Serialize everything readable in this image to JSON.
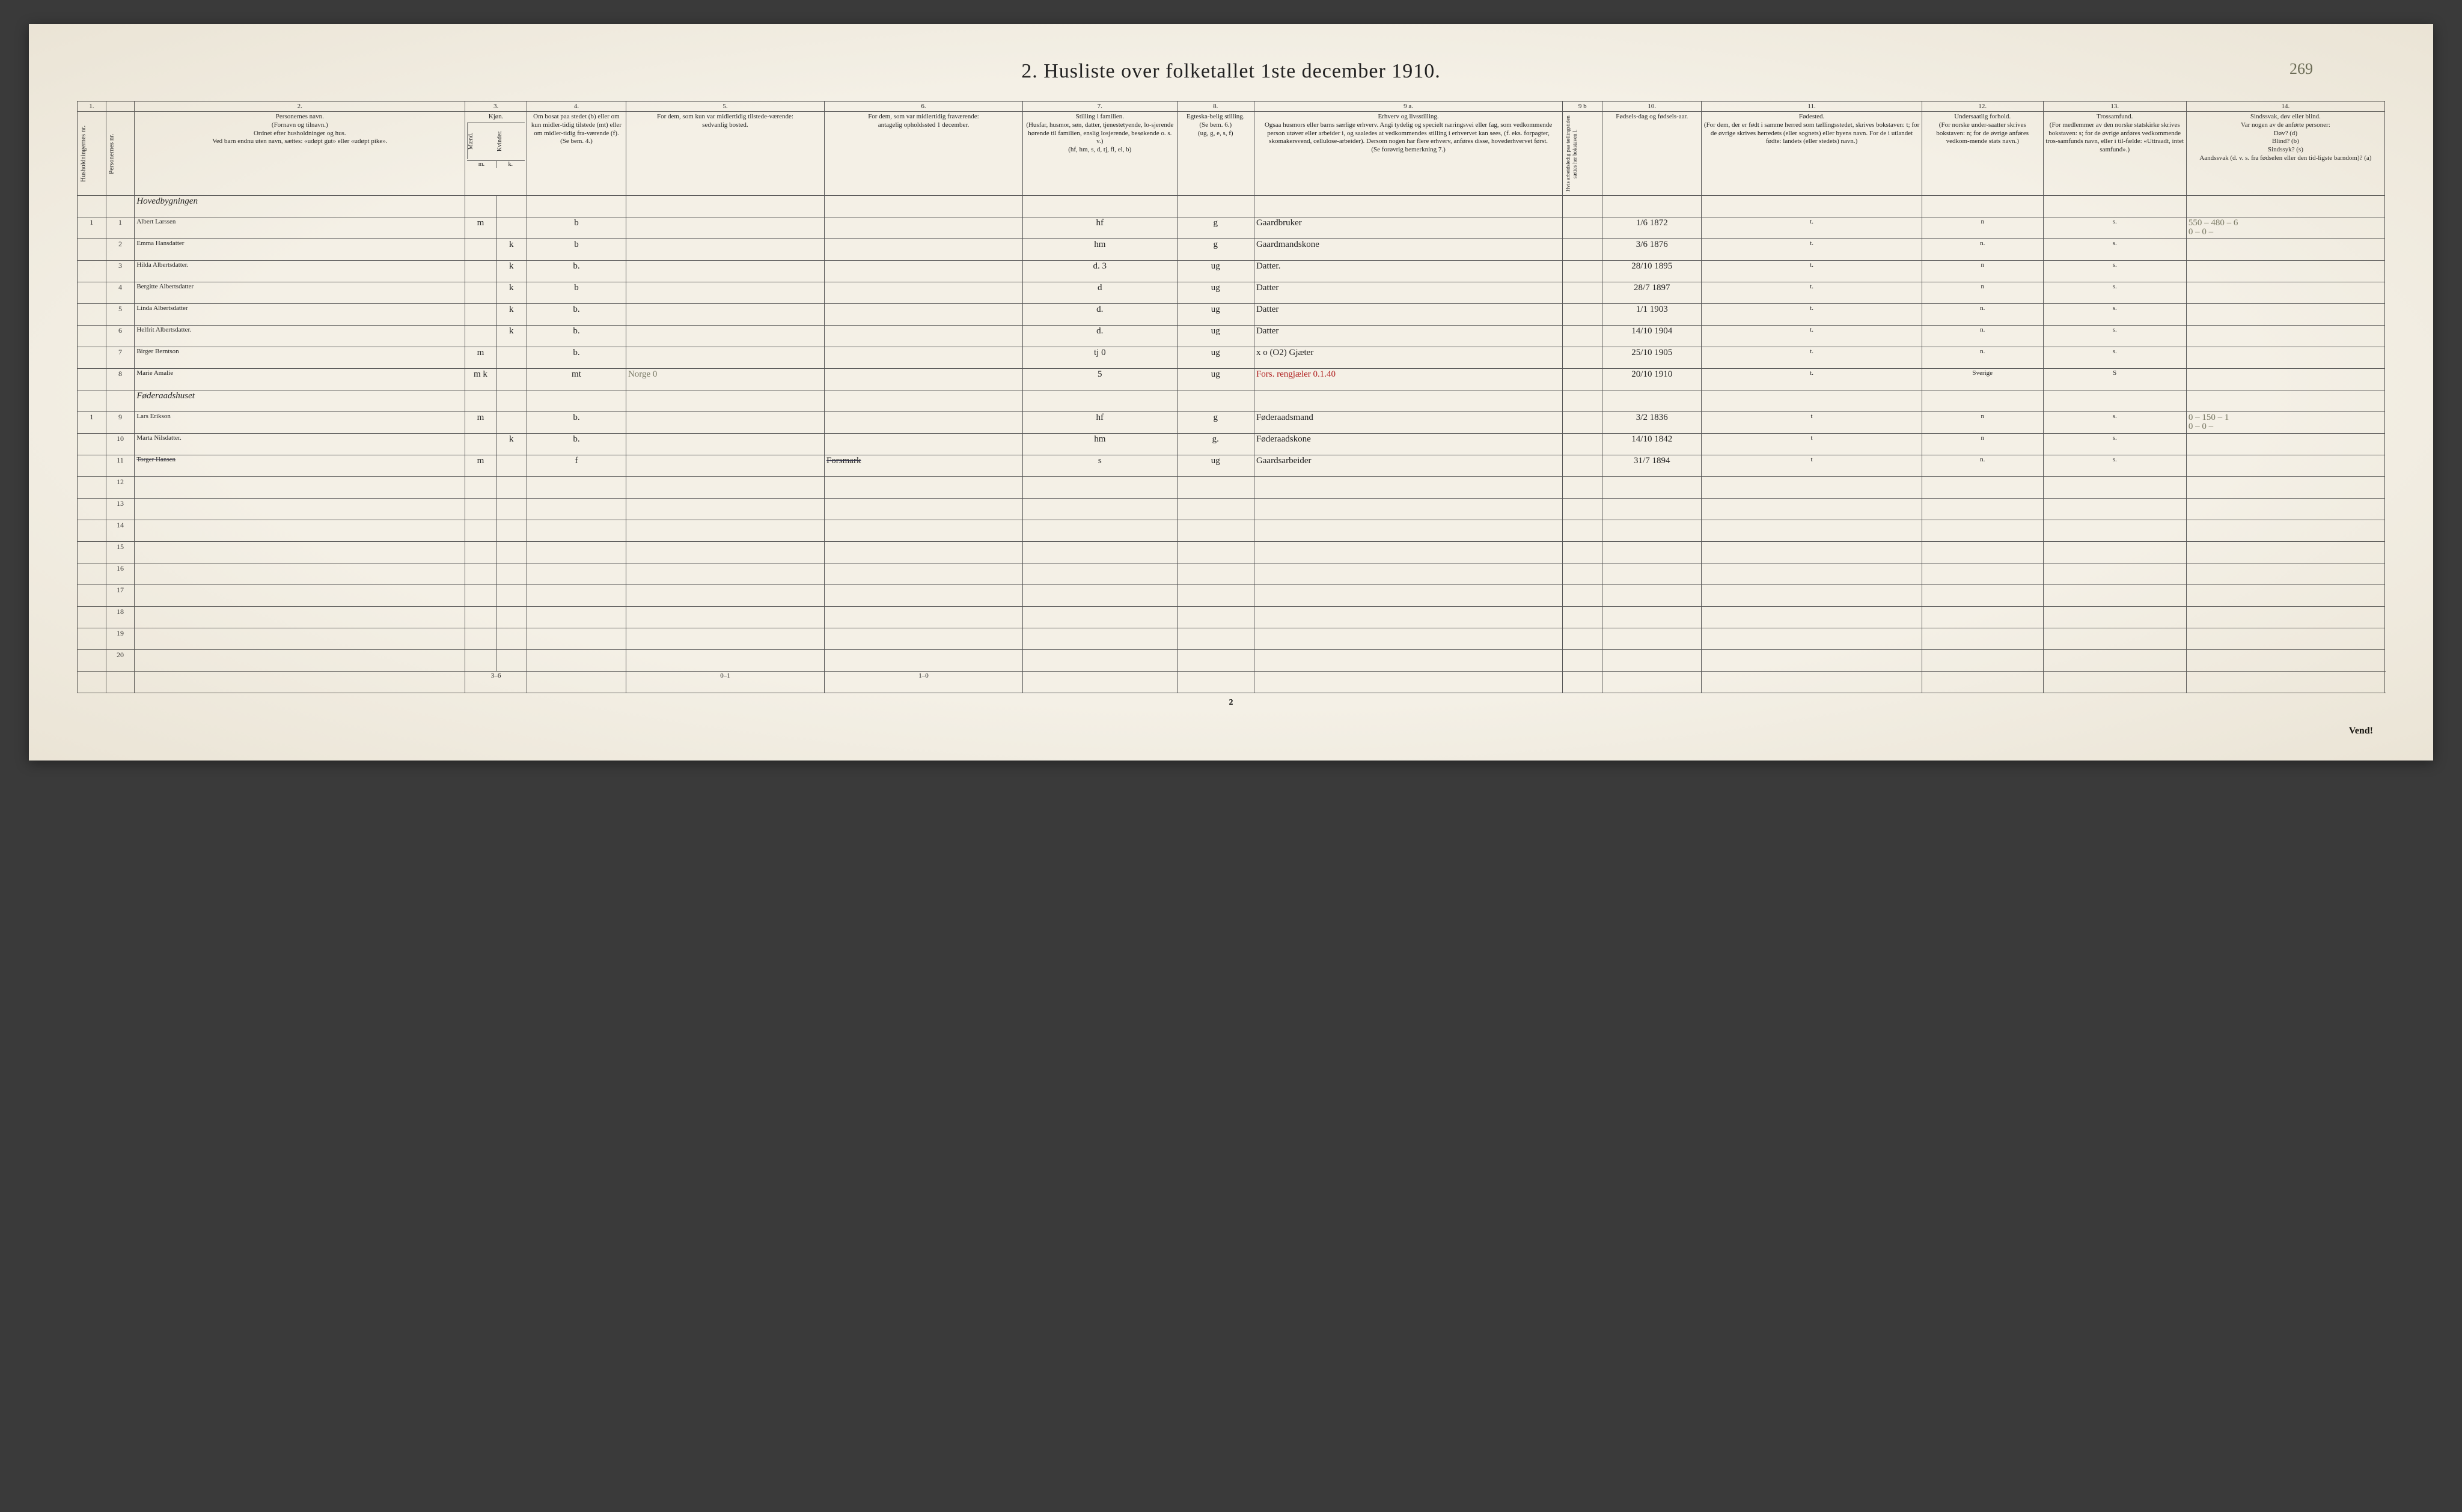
{
  "title": "2.  Husliste over folketallet 1ste december 1910.",
  "page_annotation": "269",
  "page_num_bottom": "2",
  "vend": "Vend!",
  "colnums": [
    "1.",
    "",
    "2.",
    "3.",
    "4.",
    "5.",
    "6.",
    "7.",
    "8.",
    "9 a.",
    "9 b",
    "10.",
    "11.",
    "12.",
    "13.",
    "14."
  ],
  "headers": {
    "c1a": "Husholdningernes nr.",
    "c1b": "Personernes nr.",
    "c2": "Personernes navn.\n(Fornavn og tilnavn.)\nOrdnet efter husholdninger og hus.\nVed barn endnu uten navn, sættes: «udøpt gut» eller «udøpt pike».",
    "c3": "Kjøn.",
    "c3a": "Mænd.",
    "c3b": "Kvinder.",
    "c4": "Om bosat paa stedet (b) eller om kun midler-tidig tilstede (mt) eller om midler-tidig fra-værende (f).\n(Se bem. 4.)",
    "c5": "For dem, som kun var midlertidig tilstede-værende:\nsedvanlig bosted.",
    "c6": "For dem, som var midlertidig fraværende:\nantagelig opholdssted 1 december.",
    "c7": "Stilling i familien.\n(Husfar, husmor, søn, datter, tjenestetyende, lo-sjerende hørende til familien, enslig losjerende, besøkende o. s. v.)\n(hf, hm, s, d, tj, fl, el, b)",
    "c8": "Egteska-belig stilling.\n(Se bem. 6.)\n(ug, g, e, s, f)",
    "c9a": "Erhverv og livsstilling.\nOgsaa husmors eller barns særlige erhverv. Angi tydelig og specielt næringsvei eller fag, som vedkommende person utøver eller arbeider i, og saaledes at vedkommendes stilling i erhvervet kan sees, (f. eks. forpagter, skomakersvend, cellulose-arbeider). Dersom nogen har flere erhverv, anføres disse, hovederhvervet først.\n(Se forøvrig bemerkning 7.)",
    "c9b": "Hvis arbeidsledig paa tællingstiden sættes her bokstaven l.",
    "c10": "Fødsels-dag og fødsels-aar.",
    "c11": "Fødested.\n(For dem, der er født i samme herred som tællingsstedet, skrives bokstaven: t; for de øvrige skrives herredets (eller sognets) eller byens navn. For de i utlandet fødte: landets (eller stedets) navn.)",
    "c12": "Undersaatlig forhold.\n(For norske under-saatter skrives bokstaven: n; for de øvrige anføres vedkom-mende stats navn.)",
    "c13": "Trossamfund.\n(For medlemmer av den norske statskirke skrives bokstaven: s; for de øvrige anføres vedkommende tros-samfunds navn, eller i til-fælde: «Uttraadt, intet samfund».)",
    "c14": "Sindssvak, døv eller blind.\nVar nogen av de anførte personer:\nDøv?    (d)\nBlind?   (b)\nSindssyk? (s)\nAandssvak (d. v. s. fra fødselen eller den tid-ligste barndom)? (a)"
  },
  "category1": "Hovedbygningen",
  "category2": "Føderaadshuset",
  "rows": [
    {
      "hh": "1",
      "pn": "1",
      "name": "Albert Larssen",
      "m": "m",
      "k": "",
      "res": "b",
      "away": "",
      "temp": "",
      "fam": "hf",
      "mar": "g",
      "occ": "Gaardbruker",
      "dob": "1/6 1872",
      "born": "t.",
      "nat": "n",
      "rel": "s.",
      "inf": "550 – 480 – 6\n0  –  0 –"
    },
    {
      "hh": "",
      "pn": "2",
      "name": "Emma Hansdatter",
      "m": "",
      "k": "k",
      "res": "b",
      "away": "",
      "temp": "",
      "fam": "hm",
      "mar": "g",
      "occ": "Gaardmandskone",
      "dob": "3/6 1876",
      "born": "t.",
      "nat": "n.",
      "rel": "s.",
      "inf": ""
    },
    {
      "hh": "",
      "pn": "3",
      "name": "Hilda Albertsdatter.",
      "m": "",
      "k": "k",
      "res": "b.",
      "away": "",
      "temp": "",
      "fam": "d.    3",
      "mar": "ug",
      "occ": "Datter.",
      "dob": "28/10 1895",
      "born": "t.",
      "nat": "n",
      "rel": "s.",
      "inf": ""
    },
    {
      "hh": "",
      "pn": "4",
      "name": "Bergitte Albertsdatter",
      "m": "",
      "k": "k",
      "res": "b",
      "away": "",
      "temp": "",
      "fam": "d",
      "mar": "ug",
      "occ": "Datter",
      "dob": "28/7 1897",
      "born": "t.",
      "nat": "n",
      "rel": "s.",
      "inf": ""
    },
    {
      "hh": "",
      "pn": "5",
      "name": "Linda Albertsdatter",
      "m": "",
      "k": "k",
      "res": "b.",
      "away": "",
      "temp": "",
      "fam": "d.",
      "mar": "ug",
      "occ": "Datter",
      "dob": "1/1 1903",
      "born": "t.",
      "nat": "n.",
      "rel": "s.",
      "inf": ""
    },
    {
      "hh": "",
      "pn": "6",
      "name": "Helfrit Albertsdatter.",
      "m": "",
      "k": "k",
      "res": "b.",
      "away": "",
      "temp": "",
      "fam": "d.",
      "mar": "ug",
      "occ": "Datter",
      "dob": "14/10 1904",
      "born": "t.",
      "nat": "n.",
      "rel": "s.",
      "inf": ""
    },
    {
      "hh": "",
      "pn": "7",
      "name": "Birger Berntson",
      "m": "m",
      "k": "",
      "res": "b.",
      "away": "",
      "temp": "",
      "fam": "tj    0",
      "mar": "ug",
      "occ": "x o (O2)  Gjæter",
      "dob": "25/10 1905",
      "born": "t.",
      "nat": "n.",
      "rel": "s.",
      "inf": ""
    },
    {
      "hh": "",
      "pn": "8",
      "name": "Marie Amalie",
      "m": "m k",
      "k": "",
      "res": "mt",
      "away": "Norge   0",
      "temp": "",
      "fam": "5",
      "mar": "ug",
      "occ": "Fors. rengjæler    0.1.40",
      "dob": "20/10 1910",
      "born": "t.",
      "nat": "Sverige",
      "rel": "S",
      "inf": ""
    },
    {
      "hh": "1",
      "pn": "9",
      "name": "Lars Erikson",
      "m": "m",
      "k": "",
      "res": "b.",
      "away": "",
      "temp": "",
      "fam": "hf",
      "mar": "g",
      "occ": "Føderaadsmand",
      "dob": "3/2 1836",
      "born": "t",
      "nat": "n",
      "rel": "s.",
      "inf": "0 – 150 – 1\n0 – 0 –"
    },
    {
      "hh": "",
      "pn": "10",
      "name": "Marta Nilsdatter.",
      "m": "",
      "k": "k",
      "res": "b.",
      "away": "",
      "temp": "",
      "fam": "hm",
      "mar": "g.",
      "occ": "Føderaadskone",
      "dob": "14/10 1842",
      "born": "t",
      "nat": "n",
      "rel": "s.",
      "inf": ""
    },
    {
      "hh": "",
      "pn": "11",
      "name": "Torger Hansen",
      "m": "m",
      "k": "",
      "res": "f",
      "away": "",
      "temp": "Forsmark",
      "fam": "s",
      "mar": "ug",
      "occ": "Gaardsarbeider",
      "dob": "31/7 1894",
      "born": "t",
      "nat": "n.",
      "rel": "s.",
      "inf": ""
    }
  ],
  "empty_rows": [
    "12",
    "13",
    "14",
    "15",
    "16",
    "17",
    "18",
    "19",
    "20"
  ],
  "footer_tallies": {
    "a": "3–6",
    "b": "0–1",
    "c": "1–0"
  },
  "col_widths": [
    "1.3%",
    "1.3%",
    "15%",
    "1.4%",
    "1.4%",
    "4.5%",
    "9%",
    "9%",
    "7%",
    "3.5%",
    "14%",
    "1.8%",
    "4.5%",
    "10%",
    "5.5%",
    "6.5%",
    "9%"
  ],
  "styles": {
    "background": "#f4f0e6",
    "border_color": "#555",
    "header_fontsize": 10.5,
    "body_fontsize_script": 18,
    "title_fontsize": 34
  }
}
